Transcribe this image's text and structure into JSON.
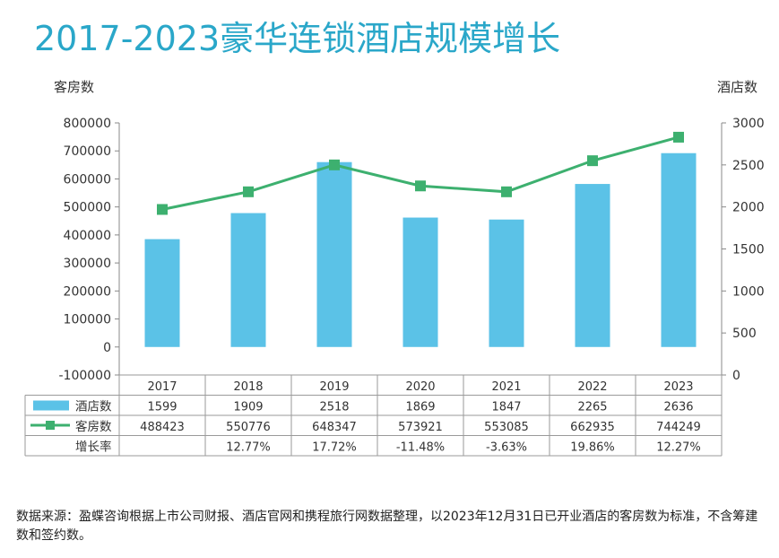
{
  "title": "2017-2023豪华连锁酒店规模增长",
  "source_note": "数据来源：盈蝶咨询根据上市公司财报、酒店官网和携程旅行网数据整理，以2023年12月31日已开业酒店的客房数为标准，不含筹建数和签约数。",
  "chart_data": {
    "type": "bar",
    "title": "2017-2023豪华连锁酒店规模增长",
    "categories": [
      "2017",
      "2018",
      "2019",
      "2020",
      "2021",
      "2022",
      "2023"
    ],
    "left_axis": {
      "label": "客房数",
      "ticks": [
        -100000,
        0,
        100000,
        200000,
        300000,
        400000,
        500000,
        600000,
        700000,
        800000
      ],
      "tick_labels": [
        "-100000",
        "0",
        "100000",
        "200000",
        "300000",
        "400000",
        "500000",
        "600000",
        "700000",
        "800000"
      ],
      "range": [
        -100000,
        800000
      ]
    },
    "right_axis": {
      "label": "酒店数",
      "ticks": [
        0,
        500,
        1000,
        1500,
        2000,
        2500,
        3000
      ],
      "tick_labels": [
        "0",
        "500",
        "1000",
        "1500",
        "2000",
        "2500",
        "3000"
      ],
      "range": [
        0,
        3000
      ]
    },
    "series": [
      {
        "name": "酒店数",
        "type": "bar",
        "axis": "left",
        "color": "#5bc2e7",
        "values": [
          1599,
          1909,
          2518,
          1869,
          1847,
          2265,
          2636
        ],
        "plotted_values": [
          385000,
          478000,
          660000,
          462000,
          455000,
          582000,
          692000
        ]
      },
      {
        "name": "客房数",
        "type": "line",
        "axis": "right",
        "color": "#3db06f",
        "values": [
          488423,
          550776,
          648347,
          573921,
          553085,
          662935,
          744249
        ],
        "plotted_values": [
          1970,
          2180,
          2500,
          2250,
          2180,
          2550,
          2830
        ]
      },
      {
        "name": "增长率",
        "type": "table-row",
        "values": [
          "",
          "12.77%",
          "17.72%",
          "-11.48%",
          "-3.63%",
          "19.86%",
          "12.27%"
        ]
      }
    ],
    "table": {
      "rows": [
        {
          "label": "酒店数",
          "cells": [
            "1599",
            "1909",
            "2518",
            "1869",
            "1847",
            "2265",
            "2636"
          ]
        },
        {
          "label": "客房数",
          "cells": [
            "488423",
            "550776",
            "648347",
            "573921",
            "553085",
            "662935",
            "744249"
          ]
        },
        {
          "label": "增长率",
          "cells": [
            "",
            "12.77%",
            "17.72%",
            "-11.48%",
            "-3.63%",
            "19.86%",
            "12.27%"
          ]
        }
      ]
    }
  }
}
